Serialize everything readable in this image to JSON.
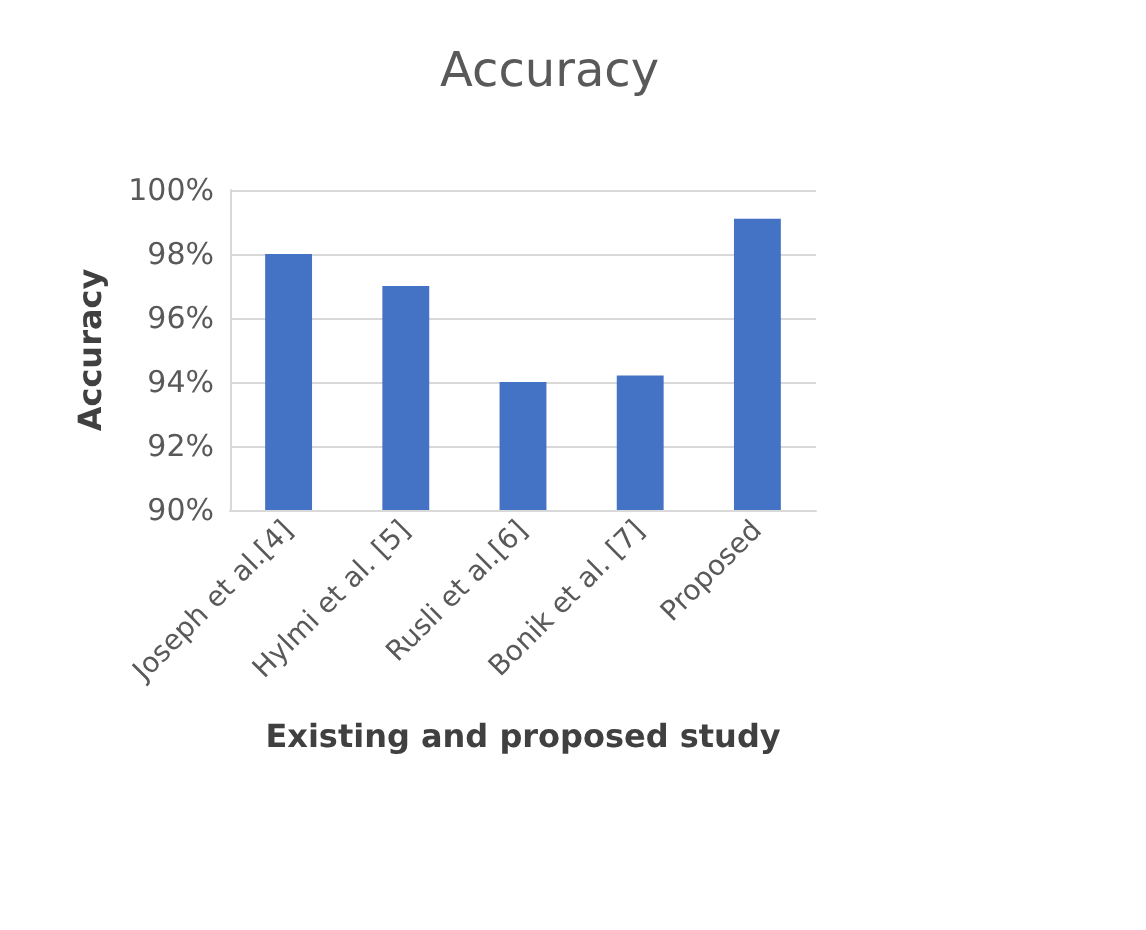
{
  "chart_data": {
    "type": "bar",
    "title": "Accuracy",
    "xlabel": "Existing and proposed study",
    "ylabel": "Accuracy",
    "categories": [
      "Joseph et al.[4]",
      "Hylmi et al. [5]",
      "Rusli et al.[6]",
      "Bonik et al. [7]",
      "Proposed"
    ],
    "values": [
      98,
      97,
      94,
      94.2,
      99.1
    ],
    "color": "#4472c4",
    "ylim": [
      90,
      100
    ],
    "yticks": [
      {
        "value": 90,
        "label": "90%"
      },
      {
        "value": 92,
        "label": "92%"
      },
      {
        "value": 94,
        "label": "94%"
      },
      {
        "value": 96,
        "label": "96%"
      },
      {
        "value": 98,
        "label": "98%"
      },
      {
        "value": 100,
        "label": "100%"
      }
    ],
    "grid": "y"
  }
}
